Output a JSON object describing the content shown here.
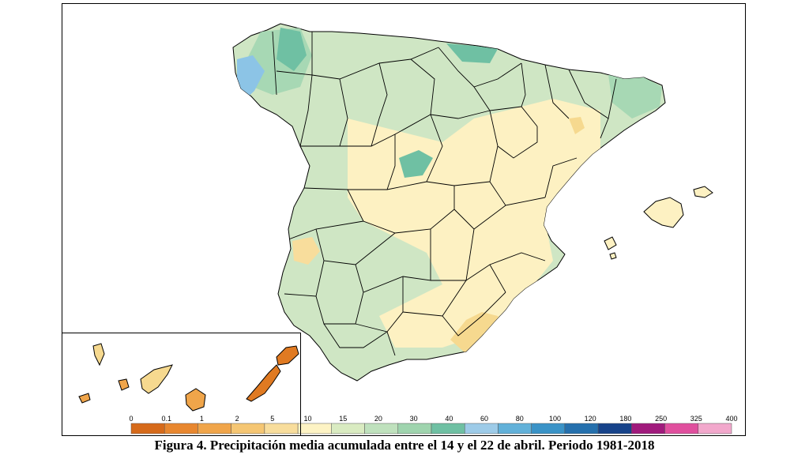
{
  "figure": {
    "caption": "Figura 4. Precipitación media acumulada entre el 14 y el 22 de abril. Periodo 1981-2018"
  },
  "legend": {
    "ticks": [
      "0",
      "0.1",
      "1",
      "2",
      "5",
      "10",
      "15",
      "20",
      "30",
      "40",
      "60",
      "80",
      "100",
      "120",
      "180",
      "250",
      "325",
      "400"
    ],
    "colors": [
      "#d66a1a",
      "#e8872f",
      "#f0a54a",
      "#f5c673",
      "#f8dd9c",
      "#fdf3c4",
      "#d9ebc1",
      "#bfe1bd",
      "#9fd4ae",
      "#6fc0a3",
      "#9dcbe8",
      "#62b1d9",
      "#3a93c7",
      "#2570ad",
      "#17438a",
      "#a01a7c",
      "#e04f9e",
      "#f2a8cc"
    ]
  },
  "map": {
    "regions": [
      "peninsula",
      "baleares",
      "canarias"
    ],
    "palette": {
      "base": "#cfe6c4",
      "dry_light": "#fdf1c2",
      "dry_mid": "#f6d98f",
      "wet": "#a7d8b4",
      "wetter": "#6fc0a3",
      "wettest": "#8cc4e6",
      "canarias_dry": "#f0a54a",
      "canarias_drier": "#e07a22",
      "border": "#000000"
    }
  }
}
